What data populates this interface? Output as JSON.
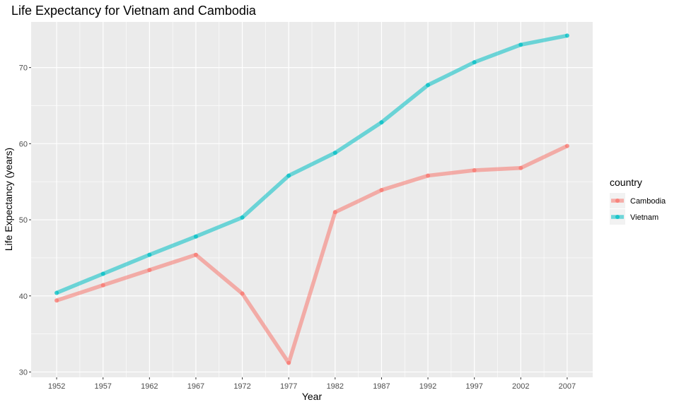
{
  "chart_data": {
    "type": "line",
    "title": "Life Expectancy for Vietnam and Cambodia",
    "xlabel": "Year",
    "ylabel": "Life Expectancy (years)",
    "x": [
      1952,
      1957,
      1962,
      1967,
      1972,
      1977,
      1982,
      1987,
      1992,
      1997,
      2002,
      2007
    ],
    "xlim": [
      1949.25,
      2009.75
    ],
    "ylim": [
      29.3,
      76.0
    ],
    "yticks": [
      30,
      40,
      50,
      60,
      70
    ],
    "grid": true,
    "legend": {
      "title": "country",
      "placement": "right"
    },
    "series": [
      {
        "name": "Cambodia",
        "color": "#F8766D",
        "values": [
          39.4,
          41.4,
          43.4,
          45.4,
          40.3,
          31.2,
          51.0,
          53.9,
          55.8,
          56.5,
          56.8,
          59.7
        ]
      },
      {
        "name": "Vietnam",
        "color": "#00BFC4",
        "values": [
          40.4,
          42.9,
          45.4,
          47.8,
          50.3,
          55.8,
          58.8,
          62.8,
          67.7,
          70.7,
          73.0,
          74.2
        ]
      }
    ]
  }
}
